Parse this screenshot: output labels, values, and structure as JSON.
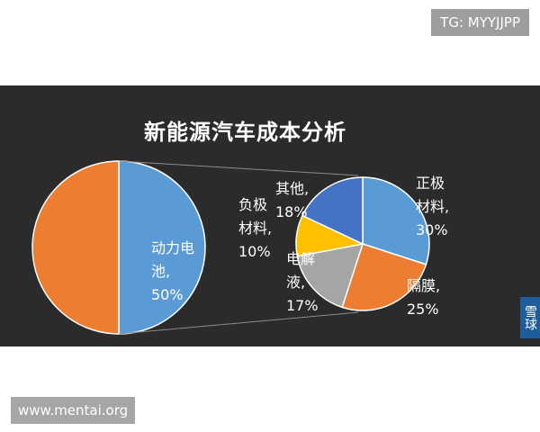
{
  "watermark_top": "TG: MYYJJPP",
  "watermark_bottom": "www.mentai.org",
  "side_badge": "雪球",
  "chart_data": [
    {
      "type": "pie",
      "title": "新能源汽车成本分析",
      "slices": [
        {
          "label": "动力电池",
          "value": 50,
          "display": "动力电\n池,\n50%",
          "color": "#5b9bd5"
        },
        {
          "label": "",
          "value": 50,
          "display": "",
          "color": "#ed7d31"
        }
      ]
    },
    {
      "type": "pie",
      "title": "",
      "slices": [
        {
          "label": "正极材料",
          "value": 30,
          "display": "正极\n材料,\n30%",
          "color": "#5b9bd5"
        },
        {
          "label": "隔膜",
          "value": 25,
          "display": "隔膜,\n25%",
          "color": "#ed7d31"
        },
        {
          "label": "电解液",
          "value": 17,
          "display": "电解\n液,\n17%",
          "color": "#a5a5a5"
        },
        {
          "label": "负极材料",
          "value": 10,
          "display": "负极\n材料,\n10%",
          "color": "#ffc000"
        },
        {
          "label": "其他",
          "value": 18,
          "display": "其他,\n18%",
          "color": "#4472c4"
        }
      ]
    }
  ]
}
